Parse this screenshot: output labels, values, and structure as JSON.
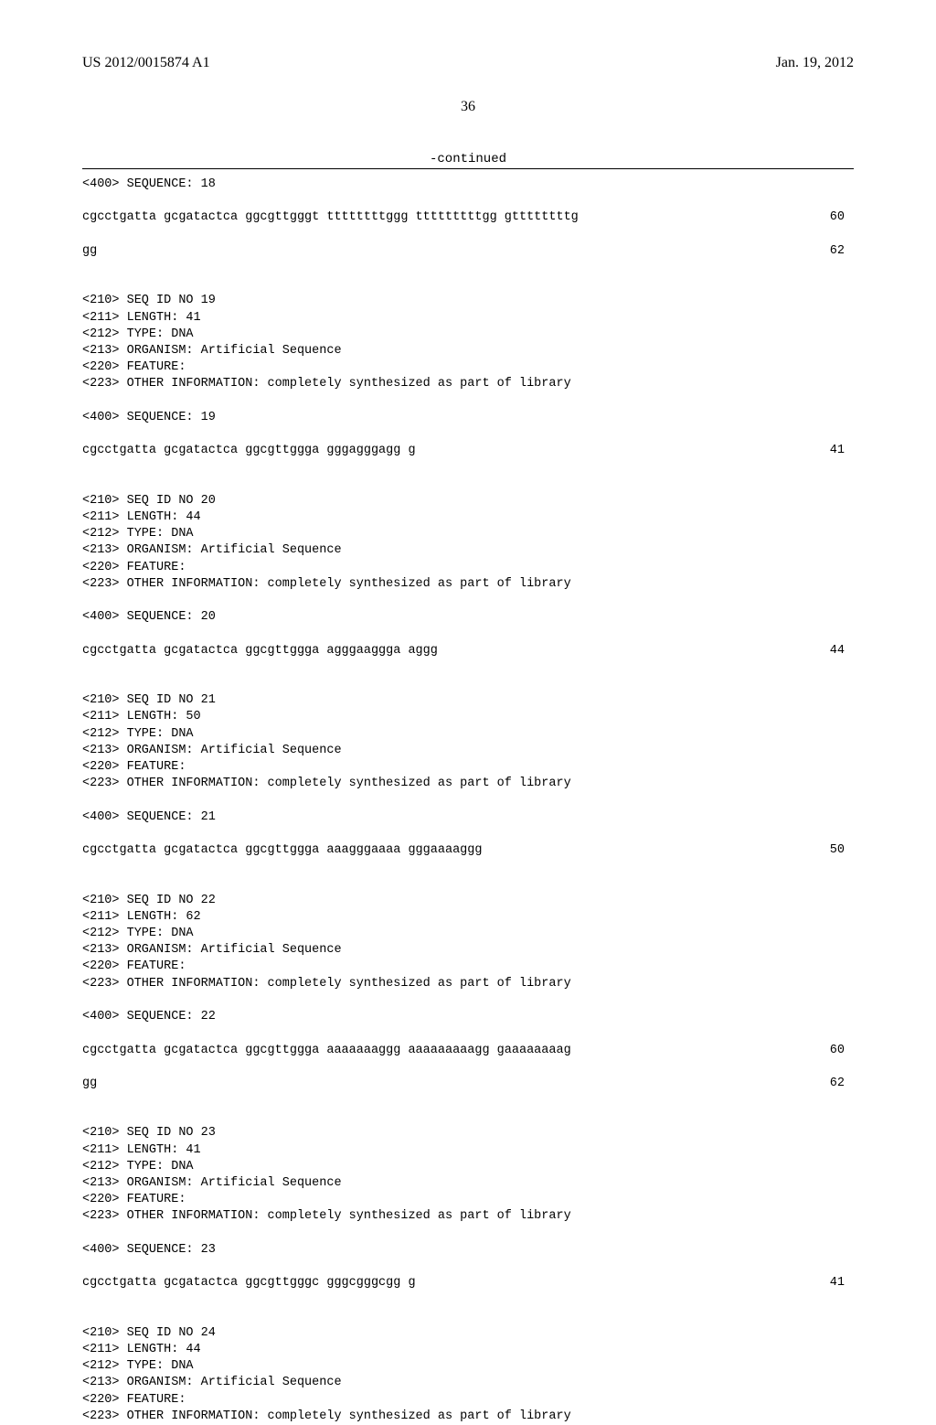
{
  "header": {
    "pub_number": "US 2012/0015874 A1",
    "pub_date": "Jan. 19, 2012",
    "page_number": "36"
  },
  "continued_label": "-continued",
  "sequences": [
    {
      "header_lines": [
        "<400> SEQUENCE: 18"
      ],
      "seq_rows": [
        {
          "text": "cgcctgatta gcgatactca ggcgttgggt ttttttttggg tttttttttgg gttttttttg",
          "num": "60"
        },
        {
          "text": "gg",
          "num": "62"
        }
      ]
    },
    {
      "header_lines": [
        "<210> SEQ ID NO 19",
        "<211> LENGTH: 41",
        "<212> TYPE: DNA",
        "<213> ORGANISM: Artificial Sequence",
        "<220> FEATURE:",
        "<223> OTHER INFORMATION: completely synthesized as part of library",
        "",
        "<400> SEQUENCE: 19"
      ],
      "seq_rows": [
        {
          "text": "cgcctgatta gcgatactca ggcgttggga gggagggagg g",
          "num": "41"
        }
      ]
    },
    {
      "header_lines": [
        "<210> SEQ ID NO 20",
        "<211> LENGTH: 44",
        "<212> TYPE: DNA",
        "<213> ORGANISM: Artificial Sequence",
        "<220> FEATURE:",
        "<223> OTHER INFORMATION: completely synthesized as part of library",
        "",
        "<400> SEQUENCE: 20"
      ],
      "seq_rows": [
        {
          "text": "cgcctgatta gcgatactca ggcgttggga agggaaggga aggg",
          "num": "44"
        }
      ]
    },
    {
      "header_lines": [
        "<210> SEQ ID NO 21",
        "<211> LENGTH: 50",
        "<212> TYPE: DNA",
        "<213> ORGANISM: Artificial Sequence",
        "<220> FEATURE:",
        "<223> OTHER INFORMATION: completely synthesized as part of library",
        "",
        "<400> SEQUENCE: 21"
      ],
      "seq_rows": [
        {
          "text": "cgcctgatta gcgatactca ggcgttggga aaagggaaaa gggaaaaggg",
          "num": "50"
        }
      ]
    },
    {
      "header_lines": [
        "<210> SEQ ID NO 22",
        "<211> LENGTH: 62",
        "<212> TYPE: DNA",
        "<213> ORGANISM: Artificial Sequence",
        "<220> FEATURE:",
        "<223> OTHER INFORMATION: completely synthesized as part of library",
        "",
        "<400> SEQUENCE: 22"
      ],
      "seq_rows": [
        {
          "text": "cgcctgatta gcgatactca ggcgttggga aaaaaaaggg aaaaaaaaagg gaaaaaaaag",
          "num": "60"
        },
        {
          "text": "gg",
          "num": "62"
        }
      ]
    },
    {
      "header_lines": [
        "<210> SEQ ID NO 23",
        "<211> LENGTH: 41",
        "<212> TYPE: DNA",
        "<213> ORGANISM: Artificial Sequence",
        "<220> FEATURE:",
        "<223> OTHER INFORMATION: completely synthesized as part of library",
        "",
        "<400> SEQUENCE: 23"
      ],
      "seq_rows": [
        {
          "text": "cgcctgatta gcgatactca ggcgttgggc gggcgggcgg g",
          "num": "41"
        }
      ]
    },
    {
      "header_lines": [
        "<210> SEQ ID NO 24",
        "<211> LENGTH: 44",
        "<212> TYPE: DNA",
        "<213> ORGANISM: Artificial Sequence",
        "<220> FEATURE:",
        "<223> OTHER INFORMATION: completely synthesized as part of library"
      ],
      "seq_rows": []
    }
  ]
}
